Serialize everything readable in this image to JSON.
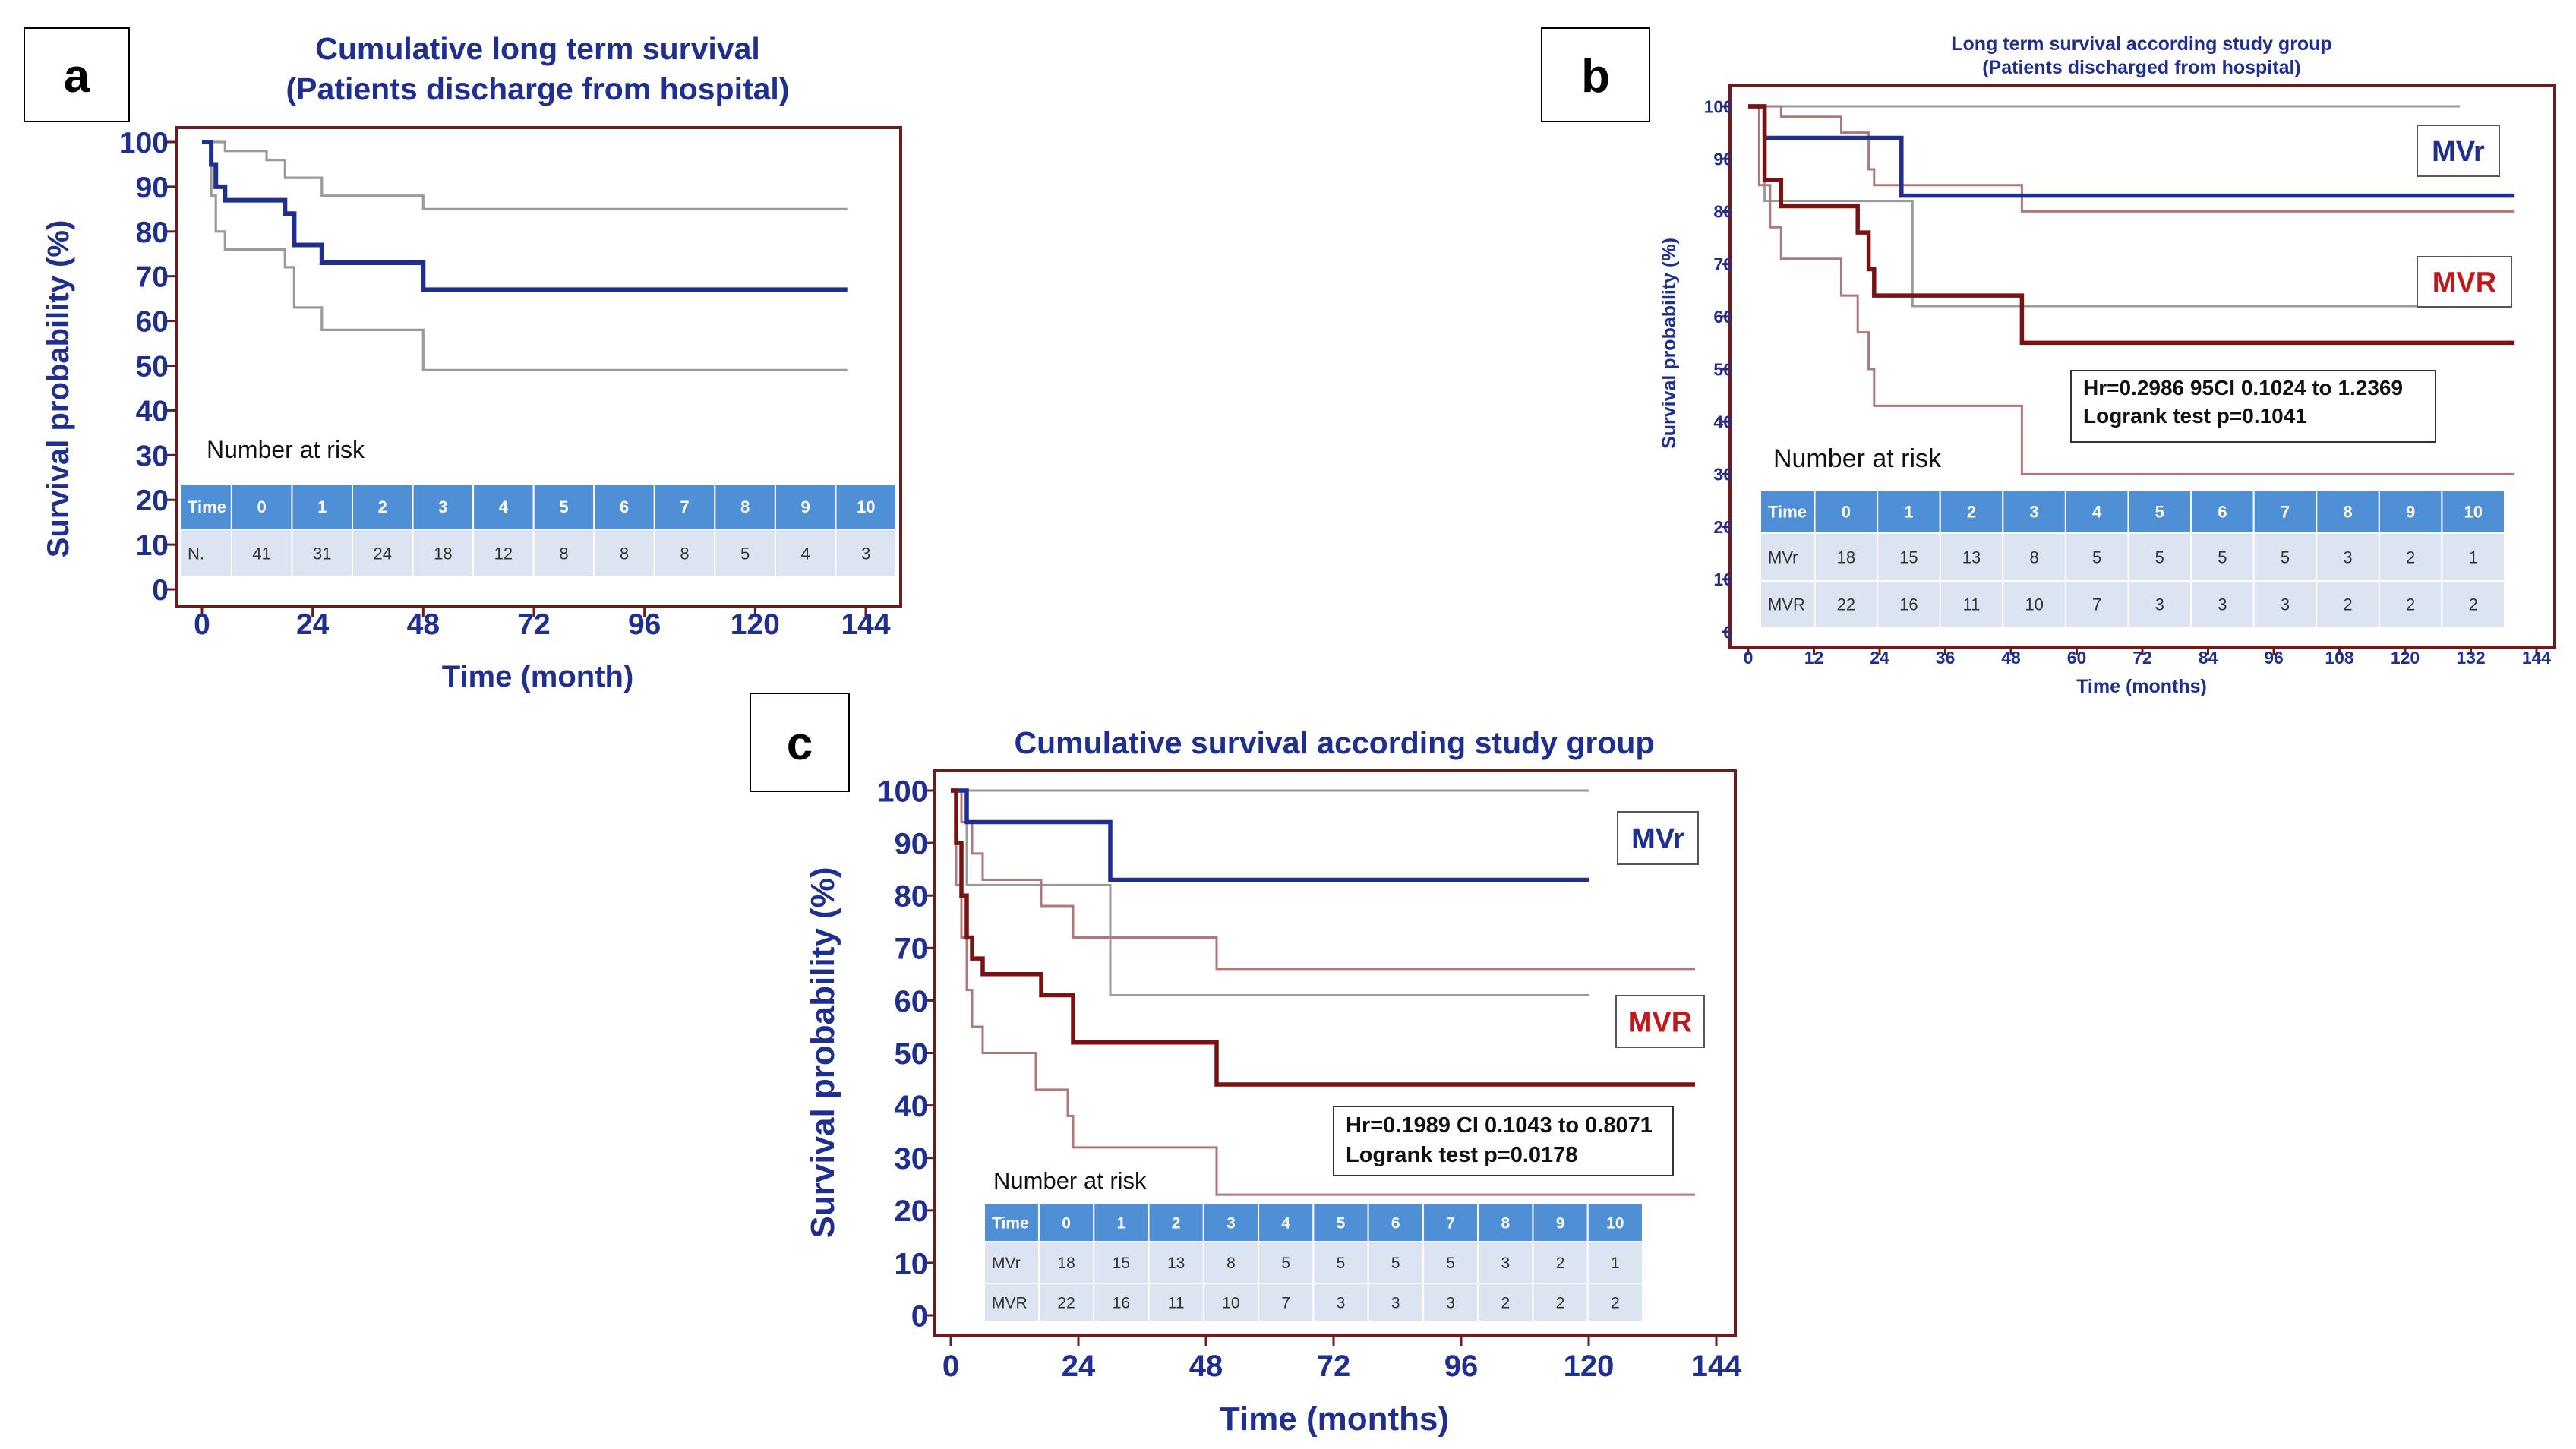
{
  "colors": {
    "navy": "#1f2f8f",
    "maroon": "#7a1212",
    "frame": "#6b1d1d",
    "ci_gray": "#9a9a9a",
    "ci_maroon": "#b07878",
    "table_header": "#4f8fd6",
    "table_row": "#dbe4f0",
    "table_text_header": "#ffffff",
    "table_text_row": "#333333"
  },
  "chart_data": [
    {
      "type": "line",
      "panel_label": "a",
      "title": [
        "Cumulative long term survival",
        "(Patients discharge from hospital)"
      ],
      "xlabel": "Time (month)",
      "ylabel": "Survival probability (%)",
      "xlim": [
        0,
        144
      ],
      "ylim": [
        0,
        100
      ],
      "xticks": [
        0,
        24,
        48,
        72,
        96,
        120,
        144
      ],
      "yticks": [
        0,
        10,
        20,
        30,
        40,
        50,
        60,
        70,
        80,
        90,
        100
      ],
      "series": [
        {
          "name": "All patients",
          "role": "main",
          "color": "navy",
          "steps": [
            [
              0,
              100
            ],
            [
              2,
              95
            ],
            [
              3,
              90
            ],
            [
              5,
              87
            ],
            [
              14,
              87
            ],
            [
              18,
              84
            ],
            [
              20,
              77
            ],
            [
              26,
              73
            ],
            [
              48,
              73
            ],
            [
              48,
              67
            ],
            [
              140,
              67
            ]
          ]
        },
        {
          "name": "Upper 95% CI",
          "role": "ci",
          "color": "ci_gray",
          "steps": [
            [
              0,
              100
            ],
            [
              5,
              98
            ],
            [
              14,
              96
            ],
            [
              18,
              92
            ],
            [
              26,
              88
            ],
            [
              48,
              88
            ],
            [
              48,
              85
            ],
            [
              140,
              85
            ]
          ]
        },
        {
          "name": "Lower 95% CI",
          "role": "ci",
          "color": "ci_gray",
          "steps": [
            [
              0,
              100
            ],
            [
              2,
              88
            ],
            [
              3,
              80
            ],
            [
              5,
              76
            ],
            [
              18,
              72
            ],
            [
              20,
              63
            ],
            [
              26,
              58
            ],
            [
              48,
              58
            ],
            [
              48,
              49
            ],
            [
              140,
              49
            ]
          ]
        }
      ],
      "risk_table": {
        "title": "Number at risk",
        "header": [
          "Time",
          "0",
          "1",
          "2",
          "3",
          "4",
          "5",
          "6",
          "7",
          "8",
          "9",
          "10"
        ],
        "rows": [
          [
            "N.",
            "41",
            "31",
            "24",
            "18",
            "12",
            "8",
            "8",
            "8",
            "5",
            "4",
            "3"
          ]
        ]
      }
    },
    {
      "type": "line",
      "panel_label": "b",
      "title": [
        "Long term survival according study group",
        "(Patients discharged from hospital)"
      ],
      "xlabel": "Time (months)",
      "ylabel": "Survival probability (%)",
      "xlim": [
        0,
        144
      ],
      "ylim": [
        0,
        100
      ],
      "xticks": [
        0,
        12,
        24,
        36,
        48,
        60,
        72,
        84,
        96,
        108,
        120,
        132,
        144
      ],
      "yticks": [
        0,
        10,
        20,
        30,
        40,
        50,
        60,
        70,
        80,
        90,
        100
      ],
      "series": [
        {
          "name": "MVr",
          "role": "main",
          "color": "navy",
          "steps": [
            [
              0,
              100
            ],
            [
              3,
              94
            ],
            [
              28,
              94
            ],
            [
              28,
              83
            ],
            [
              140,
              83
            ]
          ]
        },
        {
          "name": "MVR",
          "role": "main",
          "color": "maroon",
          "steps": [
            [
              0,
              100
            ],
            [
              3,
              86
            ],
            [
              6,
              81
            ],
            [
              17,
              81
            ],
            [
              20,
              76
            ],
            [
              22,
              69
            ],
            [
              23,
              64
            ],
            [
              50,
              64
            ],
            [
              50,
              55
            ],
            [
              140,
              55
            ]
          ]
        },
        {
          "name": "MVr upper CI",
          "role": "ci",
          "color": "ci_gray",
          "steps": [
            [
              0,
              100
            ],
            [
              130,
              100
            ]
          ]
        },
        {
          "name": "MVr lower CI",
          "role": "ci",
          "color": "ci_gray",
          "steps": [
            [
              0,
              100
            ],
            [
              3,
              82
            ],
            [
              28,
              82
            ],
            [
              30,
              62
            ],
            [
              130,
              62
            ]
          ]
        },
        {
          "name": "MVR upper CI",
          "role": "ci",
          "color": "ci_maroon",
          "steps": [
            [
              0,
              100
            ],
            [
              6,
              98
            ],
            [
              17,
              95
            ],
            [
              22,
              88
            ],
            [
              23,
              85
            ],
            [
              50,
              85
            ],
            [
              50,
              80
            ],
            [
              140,
              80
            ]
          ]
        },
        {
          "name": "MVR lower CI",
          "role": "ci",
          "color": "ci_maroon",
          "steps": [
            [
              0,
              100
            ],
            [
              2,
              85
            ],
            [
              4,
              77
            ],
            [
              6,
              71
            ],
            [
              17,
              64
            ],
            [
              20,
              57
            ],
            [
              22,
              50
            ],
            [
              23,
              43
            ],
            [
              50,
              43
            ],
            [
              50,
              30
            ],
            [
              140,
              30
            ]
          ]
        }
      ],
      "legend": [
        "MVr",
        "MVR"
      ],
      "annotation": [
        "Hr=0.2986 95CI 0.1024 to 1.2369",
        "Logrank test p=0.1041"
      ],
      "risk_table": {
        "title": "Number at risk",
        "header": [
          "Time",
          "0",
          "1",
          "2",
          "3",
          "4",
          "5",
          "6",
          "7",
          "8",
          "9",
          "10"
        ],
        "rows": [
          [
            "MVr",
            "18",
            "15",
            "13",
            "8",
            "5",
            "5",
            "5",
            "5",
            "3",
            "2",
            "1"
          ],
          [
            "MVR",
            "22",
            "16",
            "11",
            "10",
            "7",
            "3",
            "3",
            "3",
            "2",
            "2",
            "2"
          ]
        ]
      }
    },
    {
      "type": "line",
      "panel_label": "c",
      "title": [
        "Cumulative survival according study group"
      ],
      "xlabel": "Time (months)",
      "ylabel": "Survival probability (%)",
      "xlim": [
        0,
        144
      ],
      "ylim": [
        0,
        100
      ],
      "xticks": [
        0,
        24,
        48,
        72,
        96,
        120,
        144
      ],
      "yticks": [
        0,
        10,
        20,
        30,
        40,
        50,
        60,
        70,
        80,
        90,
        100
      ],
      "series": [
        {
          "name": "MVr",
          "role": "main",
          "color": "navy",
          "steps": [
            [
              0,
              100
            ],
            [
              3,
              94
            ],
            [
              30,
              94
            ],
            [
              30,
              83
            ],
            [
              120,
              83
            ]
          ]
        },
        {
          "name": "MVR",
          "role": "main",
          "color": "maroon",
          "steps": [
            [
              0,
              100
            ],
            [
              1,
              90
            ],
            [
              2,
              80
            ],
            [
              3,
              72
            ],
            [
              4,
              68
            ],
            [
              6,
              65
            ],
            [
              16,
              65
            ],
            [
              17,
              61
            ],
            [
              22,
              61
            ],
            [
              23,
              52
            ],
            [
              50,
              52
            ],
            [
              50,
              44
            ],
            [
              140,
              44
            ]
          ]
        },
        {
          "name": "MVr upper CI",
          "role": "ci",
          "color": "ci_gray",
          "steps": [
            [
              0,
              100
            ],
            [
              120,
              100
            ]
          ]
        },
        {
          "name": "MVr lower CI",
          "role": "ci",
          "color": "ci_gray",
          "steps": [
            [
              0,
              100
            ],
            [
              3,
              82
            ],
            [
              30,
              82
            ],
            [
              30,
              61
            ],
            [
              120,
              61
            ]
          ]
        },
        {
          "name": "MVR upper CI",
          "role": "ci",
          "color": "ci_maroon",
          "steps": [
            [
              0,
              100
            ],
            [
              2,
              94
            ],
            [
              4,
              88
            ],
            [
              6,
              83
            ],
            [
              16,
              83
            ],
            [
              17,
              78
            ],
            [
              22,
              78
            ],
            [
              23,
              72
            ],
            [
              50,
              72
            ],
            [
              50,
              66
            ],
            [
              140,
              66
            ]
          ]
        },
        {
          "name": "MVR lower CI",
          "role": "ci",
          "color": "ci_maroon",
          "steps": [
            [
              0,
              100
            ],
            [
              1,
              82
            ],
            [
              2,
              72
            ],
            [
              3,
              62
            ],
            [
              4,
              55
            ],
            [
              6,
              50
            ],
            [
              16,
              43
            ],
            [
              22,
              38
            ],
            [
              23,
              32
            ],
            [
              50,
              32
            ],
            [
              50,
              23
            ],
            [
              140,
              23
            ]
          ]
        }
      ],
      "legend": [
        "MVr",
        "MVR"
      ],
      "annotation": [
        "Hr=0.1989 CI 0.1043 to 0.8071",
        "Logrank test p=0.0178"
      ],
      "risk_table": {
        "title": "Number at risk",
        "header": [
          "Time",
          "0",
          "1",
          "2",
          "3",
          "4",
          "5",
          "6",
          "7",
          "8",
          "9",
          "10"
        ],
        "rows": [
          [
            "MVr",
            "18",
            "15",
            "13",
            "8",
            "5",
            "5",
            "5",
            "5",
            "3",
            "2",
            "1"
          ],
          [
            "MVR",
            "22",
            "16",
            "11",
            "10",
            "7",
            "3",
            "3",
            "3",
            "2",
            "2",
            "2"
          ]
        ]
      }
    }
  ]
}
